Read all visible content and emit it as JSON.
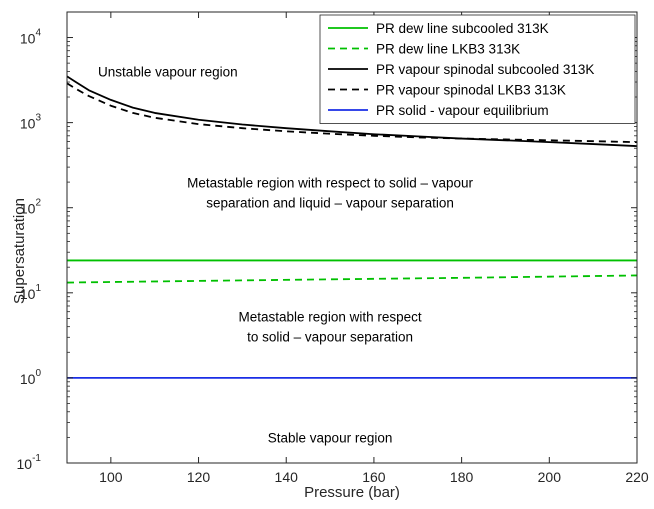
{
  "chart_data": {
    "type": "line",
    "xlabel": "Pressure (bar)",
    "ylabel": "Supersaturation",
    "xlim": [
      90,
      220
    ],
    "ylim_log10": [
      -1,
      4.3
    ],
    "y_scale": "log",
    "x_ticks": [
      100,
      120,
      140,
      160,
      180,
      200,
      220
    ],
    "y_tick_exponents": [
      -1,
      0,
      1,
      2,
      3,
      4
    ],
    "y_tick_base": "10",
    "legend_position": "top-right",
    "series": [
      {
        "name": "PR dew line subcooled 313K",
        "color": "#00c000",
        "dash": "solid",
        "x": [
          90,
          220
        ],
        "y": [
          24,
          24
        ]
      },
      {
        "name": "PR dew line LKB3 313K",
        "color": "#00c000",
        "dash": "dashed",
        "x": [
          90,
          120,
          150,
          180,
          220
        ],
        "y": [
          13.2,
          13.8,
          14.4,
          15.0,
          16.0
        ]
      },
      {
        "name": "PR vapour spinodal subcooled 313K",
        "color": "#000000",
        "dash": "solid",
        "x": [
          90,
          92,
          95,
          100,
          105,
          110,
          120,
          130,
          140,
          150,
          160,
          170,
          180,
          190,
          200,
          210,
          220
        ],
        "y": [
          3500,
          3000,
          2400,
          1850,
          1500,
          1300,
          1080,
          950,
          860,
          790,
          730,
          690,
          650,
          620,
          590,
          560,
          530
        ]
      },
      {
        "name": "PR vapour spinodal LKB3 313K",
        "color": "#000000",
        "dash": "dashed",
        "x": [
          90,
          92,
          95,
          100,
          105,
          110,
          120,
          130,
          140,
          150,
          160,
          170,
          180,
          190,
          200,
          210,
          220
        ],
        "y": [
          2900,
          2500,
          2050,
          1580,
          1300,
          1140,
          960,
          860,
          790,
          740,
          700,
          670,
          650,
          635,
          620,
          605,
          590
        ]
      },
      {
        "name": "PR solid - vapour equilibrium",
        "color": "#1a2ee6",
        "dash": "solid",
        "x": [
          90,
          220
        ],
        "y": [
          1,
          1
        ]
      }
    ],
    "annotations": [
      {
        "lines": [
          "Unstable vapour region"
        ],
        "x": 113,
        "y": 4000
      },
      {
        "lines": [
          "Metastable region with respect to solid – vapour",
          "separation and liquid – vapour separation"
        ],
        "x": 150,
        "y": 150
      },
      {
        "lines": [
          "Metastable region with respect",
          "to solid – vapour separation"
        ],
        "x": 150,
        "y": 4
      },
      {
        "lines": [
          "Stable vapour region"
        ],
        "x": 150,
        "y": 0.2
      }
    ]
  }
}
